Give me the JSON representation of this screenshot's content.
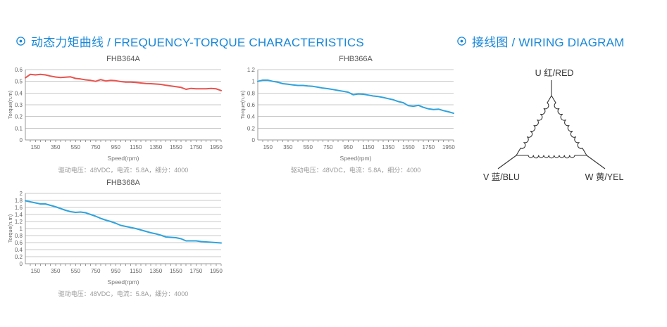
{
  "headers": {
    "left": {
      "icon": "circled-dot",
      "title": "动态力矩曲线 / FREQUENCY-TORQUE CHARACTERISTICS"
    },
    "right": {
      "icon": "circled-dot",
      "title": "接线图 / WIRING DIAGRAM"
    }
  },
  "colors": {
    "header_blue": "#1787d8",
    "curve_red": "#e8534e",
    "curve_blue": "#2fa3dc",
    "grid": "#c9c9c9",
    "axis": "#999999",
    "tick_text": "#666666",
    "wiring_line": "#333333"
  },
  "chart_data": [
    {
      "type": "line",
      "title": "FHB364A",
      "xlabel": "Speed(rpm)",
      "ylabel": "Torque(n.m)",
      "caption": "驱动电压：48VDC，电流：5.8A，细分：4000",
      "color": "#e8534e",
      "xlim": [
        50,
        2000
      ],
      "ylim": [
        0,
        0.6
      ],
      "ytick_step": 0.1,
      "xticks_major": [
        150,
        350,
        550,
        750,
        950,
        1150,
        1350,
        1550,
        1750,
        1950
      ],
      "xtick_minor_step": 50,
      "grid": true,
      "x": [
        50,
        100,
        150,
        200,
        250,
        300,
        350,
        400,
        450,
        500,
        550,
        600,
        650,
        700,
        750,
        800,
        850,
        900,
        950,
        1000,
        1050,
        1100,
        1150,
        1200,
        1250,
        1300,
        1350,
        1400,
        1450,
        1500,
        1550,
        1600,
        1650,
        1700,
        1750,
        1800,
        1850,
        1900,
        1950,
        2000
      ],
      "y": [
        0.53,
        0.56,
        0.555,
        0.56,
        0.555,
        0.545,
        0.537,
        0.533,
        0.535,
        0.538,
        0.525,
        0.52,
        0.513,
        0.508,
        0.5,
        0.515,
        0.503,
        0.508,
        0.505,
        0.498,
        0.493,
        0.494,
        0.49,
        0.486,
        0.482,
        0.48,
        0.477,
        0.474,
        0.466,
        0.46,
        0.455,
        0.448,
        0.432,
        0.44,
        0.437,
        0.437,
        0.437,
        0.44,
        0.436,
        0.421
      ]
    },
    {
      "type": "line",
      "title": "FHB366A",
      "xlabel": "Speed(rpm)",
      "ylabel": "Torque(n.m)",
      "caption": "驱动电压：48VDC，电流：5.8A，细分：4000",
      "color": "#2fa3dc",
      "xlim": [
        50,
        2000
      ],
      "ylim": [
        0,
        1.2
      ],
      "ytick_step": 0.2,
      "xticks_major": [
        150,
        350,
        550,
        750,
        950,
        1150,
        1350,
        1550,
        1750,
        1950
      ],
      "xtick_minor_step": 50,
      "grid": true,
      "x": [
        50,
        100,
        150,
        200,
        250,
        300,
        350,
        400,
        450,
        500,
        550,
        600,
        650,
        700,
        750,
        800,
        850,
        900,
        950,
        1000,
        1050,
        1100,
        1150,
        1200,
        1250,
        1300,
        1350,
        1400,
        1450,
        1500,
        1550,
        1600,
        1650,
        1700,
        1750,
        1800,
        1850,
        1900,
        1950,
        2000
      ],
      "y": [
        1.0,
        1.02,
        1.02,
        1.0,
        0.985,
        0.96,
        0.95,
        0.94,
        0.93,
        0.93,
        0.92,
        0.915,
        0.9,
        0.885,
        0.875,
        0.86,
        0.845,
        0.83,
        0.815,
        0.77,
        0.785,
        0.78,
        0.765,
        0.75,
        0.74,
        0.725,
        0.705,
        0.685,
        0.655,
        0.635,
        0.585,
        0.575,
        0.59,
        0.555,
        0.53,
        0.52,
        0.525,
        0.5,
        0.48,
        0.455
      ]
    },
    {
      "type": "line",
      "title": "FHB368A",
      "xlabel": "Speed(rpm)",
      "ylabel": "Torque(n.m)",
      "caption": "驱动电压：48VDC，电流：5.8A，细分：4000",
      "color": "#2fa3dc",
      "xlim": [
        50,
        2000
      ],
      "ylim": [
        0,
        2
      ],
      "ytick_step": 0.2,
      "xticks_major": [
        150,
        350,
        550,
        750,
        950,
        1150,
        1350,
        1550,
        1750,
        1950
      ],
      "xtick_minor_step": 50,
      "grid": true,
      "x": [
        50,
        100,
        150,
        200,
        250,
        300,
        350,
        400,
        450,
        500,
        550,
        600,
        650,
        700,
        750,
        800,
        850,
        900,
        950,
        1000,
        1050,
        1100,
        1150,
        1200,
        1250,
        1300,
        1350,
        1400,
        1450,
        1500,
        1550,
        1600,
        1650,
        1700,
        1750,
        1800,
        1850,
        1900,
        1950,
        2000
      ],
      "y": [
        1.79,
        1.76,
        1.73,
        1.7,
        1.7,
        1.66,
        1.62,
        1.57,
        1.52,
        1.48,
        1.46,
        1.47,
        1.45,
        1.4,
        1.35,
        1.29,
        1.24,
        1.2,
        1.15,
        1.09,
        1.06,
        1.03,
        1.0,
        0.96,
        0.92,
        0.88,
        0.85,
        0.81,
        0.76,
        0.75,
        0.74,
        0.71,
        0.65,
        0.65,
        0.65,
        0.63,
        0.62,
        0.61,
        0.6,
        0.59
      ]
    }
  ],
  "wiring": {
    "connection": "delta",
    "u_label": "U 红/RED",
    "v_label": "V 蓝/BLU",
    "w_label": "W 黄/YEL"
  }
}
